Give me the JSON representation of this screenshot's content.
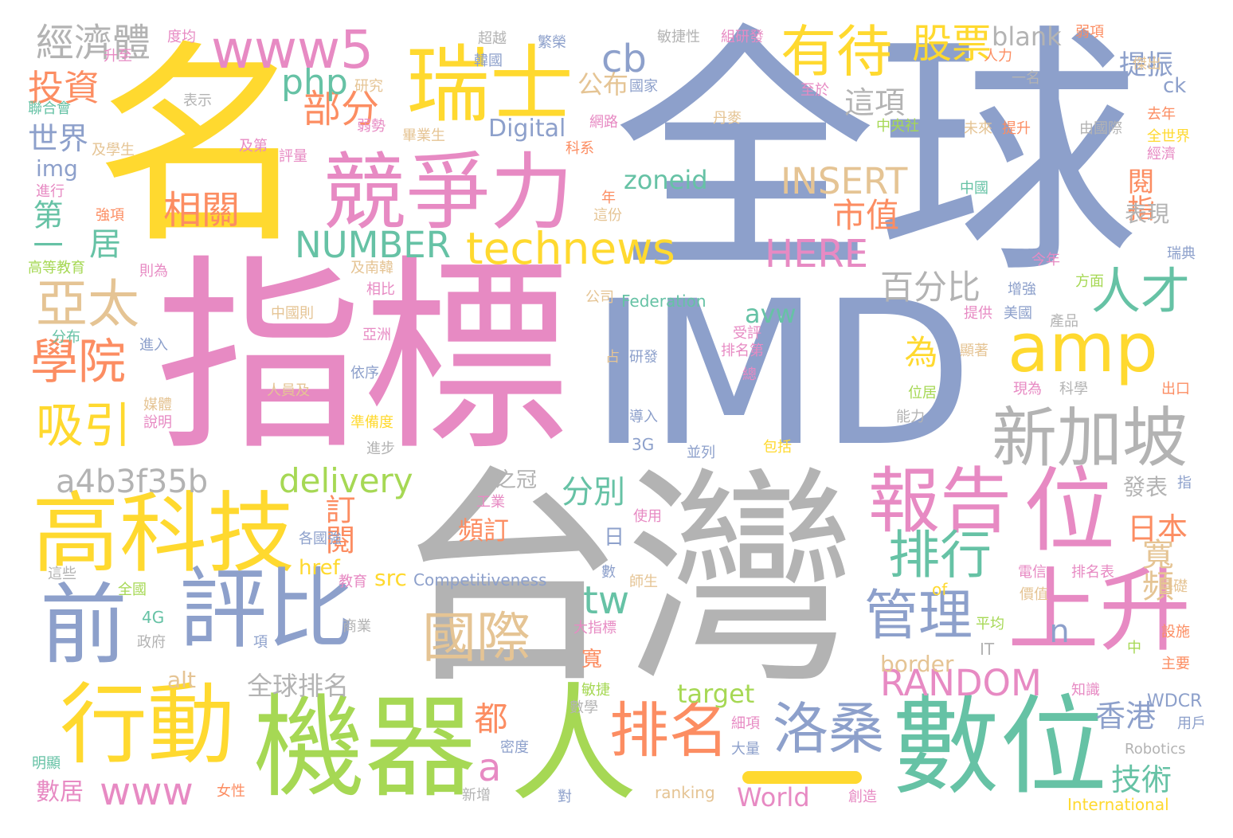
{
  "palette": {
    "blue": "#8da0cb",
    "pink": "#e78ac3",
    "gray": "#b3b3b3",
    "yellow": "#ffd92f",
    "green": "#a6d854",
    "teal": "#66c2a5",
    "orange": "#fc8d62",
    "tan": "#e5c494"
  },
  "words": [
    {
      "text": "全球",
      "color": "#8da0cb"
    },
    {
      "text": "名",
      "color": "#ffd92f"
    },
    {
      "text": "指標",
      "color": "#e78ac3"
    },
    {
      "text": "IMD",
      "color": "#8da0cb"
    },
    {
      "text": "台灣",
      "color": "#b3b3b3"
    },
    {
      "text": "機器",
      "color": "#a6d854"
    },
    {
      "text": "人",
      "color": "#a6d854"
    },
    {
      "text": "數位",
      "color": "#66c2a5"
    },
    {
      "text": "競爭力",
      "color": "#e78ac3"
    },
    {
      "text": "高科技",
      "color": "#ffd92f"
    },
    {
      "text": "瑞士",
      "color": "#ffd92f"
    },
    {
      "text": "前",
      "color": "#8da0cb"
    },
    {
      "text": "評比",
      "color": "#8da0cb"
    },
    {
      "text": "行動",
      "color": "#ffd92f"
    },
    {
      "text": "報告",
      "color": "#e78ac3"
    },
    {
      "text": "位",
      "color": "#e78ac3"
    },
    {
      "text": "上升",
      "color": "#e78ac3"
    },
    {
      "text": "新加坡",
      "color": "#b3b3b3"
    },
    {
      "text": "amp",
      "color": "#ffd92f"
    },
    {
      "text": "www5",
      "color": "#e78ac3"
    },
    {
      "text": "technews",
      "color": "#ffd92f"
    },
    {
      "text": "有待",
      "color": "#ffd92f"
    },
    {
      "text": "國際",
      "color": "#e5c494"
    },
    {
      "text": "排名",
      "color": "#fc8d62"
    },
    {
      "text": "洛桑",
      "color": "#8da0cb"
    },
    {
      "text": "排行",
      "color": "#66c2a5"
    },
    {
      "text": "管理",
      "color": "#8da0cb"
    },
    {
      "text": "亞太",
      "color": "#e5c494"
    },
    {
      "text": "學院",
      "color": "#fc8d62"
    },
    {
      "text": "吸引",
      "color": "#ffd92f"
    },
    {
      "text": "人才",
      "color": "#66c2a5"
    },
    {
      "text": "相關",
      "color": "#fc8d62"
    },
    {
      "text": "股票",
      "color": "#ffd92f"
    },
    {
      "text": "經濟體",
      "color": "#b3b3b3"
    },
    {
      "text": "投資",
      "color": "#fc8d62"
    },
    {
      "text": "世界",
      "color": "#8da0cb"
    },
    {
      "text": "部分",
      "color": "#fc8d62"
    },
    {
      "text": "php",
      "color": "#66c2a5"
    },
    {
      "text": "cb",
      "color": "#8da0cb"
    },
    {
      "text": "INSERT",
      "color": "#e5c494"
    },
    {
      "text": "NUMBER",
      "color": "#66c2a5"
    },
    {
      "text": "HERE",
      "color": "#e78ac3"
    },
    {
      "text": "市值",
      "color": "#fc8d62"
    },
    {
      "text": "這項",
      "color": "#b3b3b3"
    },
    {
      "text": "百分比",
      "color": "#b3b3b3"
    },
    {
      "text": "a4b3f35b",
      "color": "#b3b3b3"
    },
    {
      "text": "delivery",
      "color": "#a6d854"
    },
    {
      "text": "RANDOM",
      "color": "#e78ac3"
    },
    {
      "text": "www",
      "color": "#e78ac3"
    },
    {
      "text": "tw",
      "color": "#66c2a5"
    },
    {
      "text": "a",
      "color": "#e78ac3"
    },
    {
      "text": "zoneid",
      "color": "#66c2a5"
    },
    {
      "text": "blank",
      "color": "#b3b3b3"
    },
    {
      "text": "Digital",
      "color": "#8da0cb"
    },
    {
      "text": "img",
      "color": "#8da0cb"
    },
    {
      "text": "公布",
      "color": "#e5c494"
    },
    {
      "text": "提振",
      "color": "#8da0cb"
    },
    {
      "text": "第一",
      "color": "#66c2a5"
    },
    {
      "text": "居",
      "color": "#66c2a5"
    },
    {
      "text": "分別",
      "color": "#66c2a5"
    },
    {
      "text": "訂閱",
      "color": "#fc8d62"
    },
    {
      "text": "頻訂",
      "color": "#fc8d62"
    },
    {
      "text": "日本",
      "color": "#fc8d62"
    },
    {
      "text": "寬頻",
      "color": "#e5c494"
    },
    {
      "text": "香港",
      "color": "#8da0cb"
    },
    {
      "text": "技術",
      "color": "#66c2a5"
    },
    {
      "text": "都",
      "color": "#fc8d62"
    },
    {
      "text": "為",
      "color": "#ffd92f"
    },
    {
      "text": "avw",
      "color": "#66c2a5"
    },
    {
      "text": "n",
      "color": "#8da0cb"
    },
    {
      "text": "border",
      "color": "#e5c494"
    },
    {
      "text": "target",
      "color": "#a6d854"
    },
    {
      "text": "全球排名",
      "color": "#b3b3b3"
    },
    {
      "text": "alt",
      "color": "#e5c494"
    },
    {
      "text": "src",
      "color": "#ffd92f"
    },
    {
      "text": "href",
      "color": "#ffd92f"
    },
    {
      "text": "Competitiveness",
      "color": "#8da0cb"
    },
    {
      "text": "Federation",
      "color": "#66c2a5"
    },
    {
      "text": "World",
      "color": "#e78ac3"
    },
    {
      "text": "ranking",
      "color": "#e5c494"
    },
    {
      "text": "International",
      "color": "#ffd92f"
    },
    {
      "text": "Robotics",
      "color": "#b3b3b3"
    },
    {
      "text": "WDCR",
      "color": "#8da0cb"
    },
    {
      "text": "數居",
      "color": "#e78ac3"
    },
    {
      "text": "閱指",
      "color": "#fc8d62"
    },
    {
      "text": "表現",
      "color": "#b3b3b3"
    },
    {
      "text": "發表",
      "color": "#b3b3b3"
    },
    {
      "text": "之冠",
      "color": "#b3b3b3"
    },
    {
      "text": "日",
      "color": "#8da0cb"
    },
    {
      "text": "寬",
      "color": "#fc8d62"
    },
    {
      "text": "3G",
      "color": "#8da0cb"
    },
    {
      "text": "4G",
      "color": "#66c2a5"
    },
    {
      "text": "ck",
      "color": "#8da0cb"
    },
    {
      "text": "IT",
      "color": "#b3b3b3"
    },
    {
      "text": "of",
      "color": "#ffd92f"
    },
    {
      "text": "度均",
      "color": "#e78ac3"
    },
    {
      "text": "超越",
      "color": "#b3b3b3"
    },
    {
      "text": "繁榮",
      "color": "#8da0cb"
    },
    {
      "text": "敏捷性",
      "color": "#b3b3b3"
    },
    {
      "text": "組研發",
      "color": "#e78ac3"
    },
    {
      "text": "弱項",
      "color": "#fc8d62"
    },
    {
      "text": "升至",
      "color": "#e78ac3"
    },
    {
      "text": "人力",
      "color": "#fc8d62"
    },
    {
      "text": "傑出",
      "color": "#e5c494"
    },
    {
      "text": "韓國",
      "color": "#8da0cb"
    },
    {
      "text": "研究",
      "color": "#e5c494"
    },
    {
      "text": "國家",
      "color": "#8da0cb"
    },
    {
      "text": "一名",
      "color": "#b3b3b3"
    },
    {
      "text": "聯合會",
      "color": "#66c2a5"
    },
    {
      "text": "表示",
      "color": "#b3b3b3"
    },
    {
      "text": "至於",
      "color": "#e78ac3"
    },
    {
      "text": "網路",
      "color": "#e78ac3"
    },
    {
      "text": "中央社",
      "color": "#a6d854"
    },
    {
      "text": "去年",
      "color": "#fc8d62"
    },
    {
      "text": "全世界",
      "color": "#ffd92f"
    },
    {
      "text": "經濟",
      "color": "#e78ac3"
    },
    {
      "text": "弱勢",
      "color": "#e78ac3"
    },
    {
      "text": "畢業生",
      "color": "#e5c494"
    },
    {
      "text": "丹麥",
      "color": "#e5c494"
    },
    {
      "text": "未來",
      "color": "#e5c494"
    },
    {
      "text": "提升",
      "color": "#fc8d62"
    },
    {
      "text": "由國際",
      "color": "#b3b3b3"
    },
    {
      "text": "及學生",
      "color": "#e5c494"
    },
    {
      "text": "及第",
      "color": "#e78ac3"
    },
    {
      "text": "評量",
      "color": "#e78ac3"
    },
    {
      "text": "科系",
      "color": "#fc8d62"
    },
    {
      "text": "進行",
      "color": "#e78ac3"
    },
    {
      "text": "強項",
      "color": "#fc8d62"
    },
    {
      "text": "年",
      "color": "#fc8d62"
    },
    {
      "text": "這份",
      "color": "#e5c494"
    },
    {
      "text": "中國",
      "color": "#66c2a5"
    },
    {
      "text": "高等教育",
      "color": "#a6d854"
    },
    {
      "text": "則為",
      "color": "#e78ac3"
    },
    {
      "text": "及南韓",
      "color": "#e5c494"
    },
    {
      "text": "相比",
      "color": "#e78ac3"
    },
    {
      "text": "今年",
      "color": "#e78ac3"
    },
    {
      "text": "瑞典",
      "color": "#8da0cb"
    },
    {
      "text": "公司",
      "color": "#e5c494"
    },
    {
      "text": "方面",
      "color": "#a6d854"
    },
    {
      "text": "中國則",
      "color": "#e5c494"
    },
    {
      "text": "提供",
      "color": "#e78ac3"
    },
    {
      "text": "美國",
      "color": "#8da0cb"
    },
    {
      "text": "增強",
      "color": "#8da0cb"
    },
    {
      "text": "產品",
      "color": "#b3b3b3"
    },
    {
      "text": "亞洲",
      "color": "#e78ac3"
    },
    {
      "text": "受評",
      "color": "#e78ac3"
    },
    {
      "text": "排名第",
      "color": "#e78ac3"
    },
    {
      "text": "分布",
      "color": "#66c2a5"
    },
    {
      "text": "進入",
      "color": "#8da0cb"
    },
    {
      "text": "研發",
      "color": "#8da0cb"
    },
    {
      "text": "占",
      "color": "#e5c494"
    },
    {
      "text": "總",
      "color": "#e78ac3"
    },
    {
      "text": "顯著",
      "color": "#e5c494"
    },
    {
      "text": "出口",
      "color": "#fc8d62"
    },
    {
      "text": "人員及",
      "color": "#e5c494"
    },
    {
      "text": "依序",
      "color": "#8da0cb"
    },
    {
      "text": "位居",
      "color": "#a6d854"
    },
    {
      "text": "現為",
      "color": "#e78ac3"
    },
    {
      "text": "科學",
      "color": "#b3b3b3"
    },
    {
      "text": "媒體",
      "color": "#e5c494"
    },
    {
      "text": "說明",
      "color": "#e78ac3"
    },
    {
      "text": "準備度",
      "color": "#ffd92f"
    },
    {
      "text": "導入",
      "color": "#8da0cb"
    },
    {
      "text": "能力",
      "color": "#b3b3b3"
    },
    {
      "text": "進步",
      "color": "#b3b3b3"
    },
    {
      "text": "並列",
      "color": "#8da0cb"
    },
    {
      "text": "包括",
      "color": "#ffd92f"
    },
    {
      "text": "指",
      "color": "#8da0cb"
    },
    {
      "text": "工業",
      "color": "#e78ac3"
    },
    {
      "text": "使用",
      "color": "#e78ac3"
    },
    {
      "text": "各國強",
      "color": "#8da0cb"
    },
    {
      "text": "這些",
      "color": "#b3b3b3"
    },
    {
      "text": "教育",
      "color": "#e78ac3"
    },
    {
      "text": "數",
      "color": "#8da0cb"
    },
    {
      "text": "師生",
      "color": "#e5c494"
    },
    {
      "text": "電信",
      "color": "#e78ac3"
    },
    {
      "text": "排名表",
      "color": "#e78ac3"
    },
    {
      "text": "基礎",
      "color": "#e5c494"
    },
    {
      "text": "全國",
      "color": "#a6d854"
    },
    {
      "text": "價值",
      "color": "#e5c494"
    },
    {
      "text": "政府",
      "color": "#b3b3b3"
    },
    {
      "text": "項",
      "color": "#8da0cb"
    },
    {
      "text": "商業",
      "color": "#b3b3b3"
    },
    {
      "text": "大指標",
      "color": "#e78ac3"
    },
    {
      "text": "平均",
      "color": "#a6d854"
    },
    {
      "text": "中",
      "color": "#a6d854"
    },
    {
      "text": "設施",
      "color": "#fc8d62"
    },
    {
      "text": "主要",
      "color": "#fc8d62"
    },
    {
      "text": "敏捷",
      "color": "#a6d854"
    },
    {
      "text": "知識",
      "color": "#e78ac3"
    },
    {
      "text": "數學",
      "color": "#b3b3b3"
    },
    {
      "text": "細項",
      "color": "#e78ac3"
    },
    {
      "text": "大量",
      "color": "#8da0cb"
    },
    {
      "text": "用戶",
      "color": "#8da0cb"
    },
    {
      "text": "明顯",
      "color": "#66c2a5"
    },
    {
      "text": "密度",
      "color": "#8da0cb"
    },
    {
      "text": "女性",
      "color": "#fc8d62"
    },
    {
      "text": "新增",
      "color": "#b3b3b3"
    },
    {
      "text": "對",
      "color": "#8da0cb"
    },
    {
      "text": "創造",
      "color": "#e78ac3"
    }
  ]
}
